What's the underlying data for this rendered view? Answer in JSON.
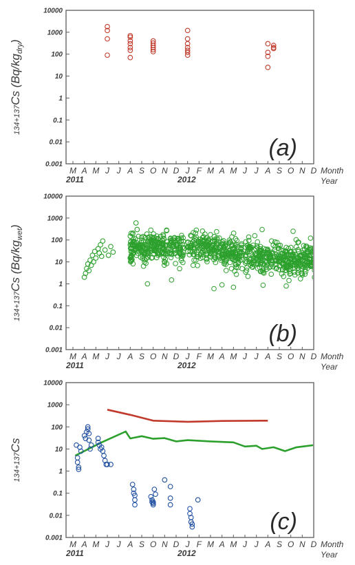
{
  "colors": {
    "a": "#c0392b",
    "b": "#2ca02c",
    "c_points": "#1f4fa0",
    "c_red": "#c0392b",
    "c_green": "#2ca02c"
  },
  "chart_data": [
    {
      "panel": "(a)",
      "type": "scatter",
      "ylabel": {
        "prefix": "134+137",
        "main": "Cs (Bq/kg",
        "sub": "dry",
        "suffix": ")"
      },
      "yscale": "log",
      "ylim": [
        0.001,
        10000
      ],
      "ytick_labels": [
        "0.001",
        "0.01",
        "0.1",
        "1",
        "10",
        "100",
        "1000",
        "10000"
      ],
      "month_labels": [
        "M",
        "A",
        "M",
        "J",
        "J",
        "A",
        "S",
        "O",
        "N",
        "D",
        "J",
        "F",
        "M",
        "A",
        "M",
        "J",
        "J",
        "A",
        "S",
        "O",
        "N",
        "D"
      ],
      "year_labels": [
        "2011",
        "2012"
      ],
      "month_axis_name": "Month",
      "year_axis_name": "Year",
      "points": [
        [
          3,
          1800
        ],
        [
          3,
          1200
        ],
        [
          3,
          500
        ],
        [
          3,
          90
        ],
        [
          5,
          700
        ],
        [
          5,
          600
        ],
        [
          5,
          400
        ],
        [
          5,
          300
        ],
        [
          5,
          200
        ],
        [
          5,
          150
        ],
        [
          5,
          70
        ],
        [
          7,
          400
        ],
        [
          7,
          320
        ],
        [
          7,
          250
        ],
        [
          7,
          200
        ],
        [
          7,
          160
        ],
        [
          7,
          130
        ],
        [
          10,
          1200
        ],
        [
          10,
          500
        ],
        [
          10,
          300
        ],
        [
          10,
          200
        ],
        [
          10,
          150
        ],
        [
          10,
          120
        ],
        [
          10,
          90
        ],
        [
          17,
          300
        ],
        [
          17,
          120
        ],
        [
          17,
          80
        ],
        [
          17,
          25
        ],
        [
          17.5,
          250
        ],
        [
          17.5,
          200
        ],
        [
          17.5,
          180
        ]
      ]
    },
    {
      "panel": "(b)",
      "type": "scatter",
      "ylabel": {
        "prefix": "134+137",
        "main": "Cs (Bq/kg",
        "sub": "wet",
        "suffix": ")"
      },
      "yscale": "log",
      "ylim": [
        0.001,
        10000
      ],
      "ytick_labels": [
        "0.001",
        "0.01",
        "0.1",
        "1",
        "10",
        "100",
        "1000",
        "10000"
      ],
      "month_labels": [
        "M",
        "A",
        "M",
        "J",
        "J",
        "A",
        "S",
        "O",
        "N",
        "D",
        "J",
        "F",
        "M",
        "A",
        "M",
        "J",
        "J",
        "A",
        "S",
        "O",
        "N",
        "D"
      ],
      "year_labels": [
        "2011",
        "2012"
      ],
      "month_axis_name": "Month",
      "year_axis_name": "Year",
      "points": [
        [
          1,
          2
        ],
        [
          1.1,
          3
        ],
        [
          1.2,
          5
        ],
        [
          1.3,
          8
        ],
        [
          1.4,
          4
        ],
        [
          1.5,
          12
        ],
        [
          1.6,
          7
        ],
        [
          1.7,
          20
        ],
        [
          1.8,
          10
        ],
        [
          1.9,
          30
        ],
        [
          2,
          15
        ],
        [
          2.2,
          40
        ],
        [
          2.3,
          25
        ],
        [
          2.4,
          60
        ],
        [
          2.5,
          18
        ],
        [
          2.6,
          90
        ],
        [
          2.8,
          35
        ],
        [
          3.1,
          20
        ],
        [
          3.3,
          50
        ],
        [
          3.5,
          28
        ],
        [
          5,
          150
        ],
        [
          5,
          60
        ],
        [
          5,
          15
        ],
        [
          5.5,
          600
        ],
        [
          5.6,
          300
        ]
      ],
      "cloud": {
        "x_start": 5,
        "x_end": 22,
        "median": [
          [
            5,
            40
          ],
          [
            8,
            45
          ],
          [
            10,
            45
          ],
          [
            12,
            40
          ],
          [
            13,
            30
          ],
          [
            15,
            20
          ],
          [
            17,
            18
          ],
          [
            19,
            12
          ],
          [
            22,
            15
          ]
        ],
        "spread_log10": 0.55,
        "density_per_month": 62,
        "gaps": [
          [
            9.7,
            10.0
          ],
          [
            14.9,
            15.05
          ]
        ],
        "outliers": [
          [
            6.5,
            1
          ],
          [
            8.6,
            1.5
          ],
          [
            12.3,
            0.6
          ],
          [
            13,
            0.9
          ],
          [
            14,
            0.7
          ],
          [
            18.6,
            0.8
          ],
          [
            21.8,
            0.6
          ],
          [
            16.5,
            300
          ],
          [
            19.2,
            250
          ]
        ]
      }
    },
    {
      "panel": "(c)",
      "type": "scatter+line",
      "ylabel": {
        "prefix": "134+137",
        "main": "Cs",
        "sub": "",
        "suffix": ""
      },
      "yscale": "log",
      "ylim": [
        0.001,
        10000
      ],
      "ytick_labels": [
        "0.001",
        "0.01",
        "0.1",
        "1",
        "10",
        "100",
        "1000",
        "10000"
      ],
      "month_labels": [
        "M",
        "A",
        "M",
        "J",
        "J",
        "A",
        "S",
        "O",
        "N",
        "D",
        "J",
        "F",
        "M",
        "A",
        "M",
        "J",
        "J",
        "A",
        "S",
        "O",
        "N",
        "D"
      ],
      "year_labels": [
        "2011",
        "2012"
      ],
      "month_axis_name": "Month",
      "year_axis_name": "Year",
      "points": [
        [
          0.3,
          15
        ],
        [
          0.4,
          4
        ],
        [
          0.4,
          2.5
        ],
        [
          0.5,
          1.5
        ],
        [
          0.5,
          1.2
        ],
        [
          0.6,
          12
        ],
        [
          0.7,
          8
        ],
        [
          1.0,
          40
        ],
        [
          1.1,
          30
        ],
        [
          1.2,
          60
        ],
        [
          1.3,
          100
        ],
        [
          1.3,
          80
        ],
        [
          1.4,
          50
        ],
        [
          1.4,
          25
        ],
        [
          1.5,
          10
        ],
        [
          1.6,
          15
        ],
        [
          2.2,
          30
        ],
        [
          2.2,
          20
        ],
        [
          2.3,
          15
        ],
        [
          2.4,
          10
        ],
        [
          2.5,
          12
        ],
        [
          2.6,
          8
        ],
        [
          2.7,
          5
        ],
        [
          2.8,
          3
        ],
        [
          2.9,
          2
        ],
        [
          3,
          2
        ],
        [
          3.3,
          2
        ],
        [
          5.2,
          0.25
        ],
        [
          5.3,
          0.15
        ],
        [
          5.3,
          0.1
        ],
        [
          5.4,
          0.08
        ],
        [
          5.4,
          0.05
        ],
        [
          5.4,
          0.03
        ],
        [
          6.8,
          0.07
        ],
        [
          6.9,
          0.05
        ],
        [
          6.9,
          0.04
        ],
        [
          7,
          0.035
        ],
        [
          7,
          0.03
        ],
        [
          7,
          0.04
        ],
        [
          7.1,
          0.15
        ],
        [
          7.2,
          0.09
        ],
        [
          8.0,
          0.4
        ],
        [
          8.5,
          0.2
        ],
        [
          8.5,
          0.06
        ],
        [
          8.5,
          0.03
        ],
        [
          10.2,
          0.02
        ],
        [
          10.2,
          0.012
        ],
        [
          10.3,
          0.008
        ],
        [
          10.3,
          0.005
        ],
        [
          10.4,
          0.004
        ],
        [
          10.4,
          0.003
        ],
        [
          10.9,
          0.05
        ]
      ],
      "series": [
        {
          "color_key": "c_red",
          "points": [
            [
              3,
              600
            ],
            [
              5,
              350
            ],
            [
              7,
              190
            ],
            [
              10,
              170
            ],
            [
              13,
              185
            ],
            [
              17,
              190
            ]
          ]
        },
        {
          "color_key": "c_green",
          "points": [
            [
              0.2,
              5
            ],
            [
              2.5,
              20
            ],
            [
              4.6,
              62
            ],
            [
              5,
              30
            ],
            [
              6,
              38
            ],
            [
              7,
              29
            ],
            [
              8,
              31
            ],
            [
              9,
              22
            ],
            [
              10,
              25
            ],
            [
              12,
              22
            ],
            [
              14,
              20
            ],
            [
              15,
              13
            ],
            [
              16,
              14
            ],
            [
              16.5,
              10
            ],
            [
              17.5,
              12
            ],
            [
              18.5,
              8
            ],
            [
              19.5,
              12
            ],
            [
              21,
              15
            ],
            [
              22,
              12
            ]
          ]
        }
      ]
    }
  ]
}
